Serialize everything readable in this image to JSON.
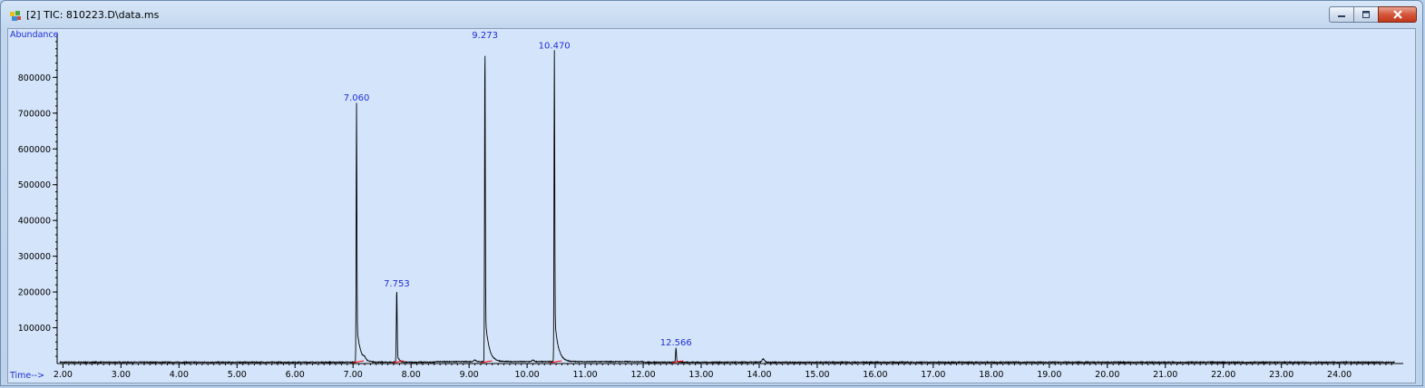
{
  "window": {
    "title": "[2] TIC: 810223.D\\data.ms",
    "buttons": [
      "minimize",
      "maximize",
      "close"
    ]
  },
  "chart_data": {
    "type": "line",
    "ylabel": "Abundance",
    "xlabel": "Time-->",
    "xlim": [
      1.9,
      25.1
    ],
    "ylim": [
      0,
      920000
    ],
    "x_ticks": [
      "2.00",
      "3.00",
      "4.00",
      "5.00",
      "6.00",
      "7.00",
      "8.00",
      "9.00",
      "10.00",
      "11.00",
      "12.00",
      "13.00",
      "14.00",
      "15.00",
      "16.00",
      "17.00",
      "18.00",
      "19.00",
      "20.00",
      "21.00",
      "22.00",
      "23.00",
      "24.00"
    ],
    "y_ticks": [
      "100000",
      "200000",
      "300000",
      "400000",
      "500000",
      "600000",
      "700000",
      "800000"
    ],
    "peaks": [
      {
        "label": "7.060",
        "time": 7.06,
        "abundance": 725000
      },
      {
        "label": "7.753",
        "time": 7.753,
        "abundance": 205000
      },
      {
        "label": "9.273",
        "time": 9.273,
        "abundance": 900000
      },
      {
        "label": "10.470",
        "time": 10.47,
        "abundance": 870000
      },
      {
        "label": "12.566",
        "time": 12.566,
        "abundance": 40000
      }
    ],
    "colors": {
      "trace": "#000000",
      "labels": "#1f2fd6",
      "background": "#d4e4fa",
      "baseline_marks": "#ff0000"
    }
  }
}
